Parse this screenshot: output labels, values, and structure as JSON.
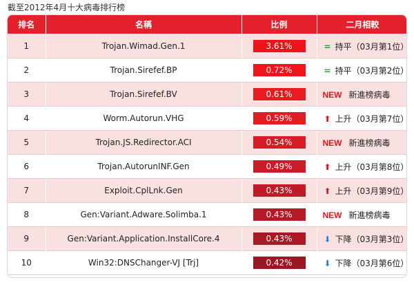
{
  "caption": "截至2012年4月十大病毒排行榜",
  "headers": [
    "排名",
    "名稱",
    "比例",
    "二月相較"
  ],
  "rows": [
    {
      "rank": "1",
      "name": "Trojan.Wimad.Gen.1",
      "ratio": "3.61%",
      "ratio_color": "#f01219",
      "change_icon": "equal-icon",
      "change_new": "",
      "change_text": "持平（03月第1位）"
    },
    {
      "rank": "2",
      "name": "Trojan.Sirefef.BP",
      "ratio": "0.72%",
      "ratio_color": "#ee151d",
      "change_icon": "equal-icon",
      "change_new": "",
      "change_text": "持平（03月第2位）"
    },
    {
      "rank": "3",
      "name": "Trojan.Sirefef.BV",
      "ratio": "0.61%",
      "ratio_color": "#e81a22",
      "change_icon": "",
      "change_new": "NEW",
      "change_text": "新進榜病毒"
    },
    {
      "rank": "4",
      "name": "Worm.Autorun.VHG",
      "ratio": "0.59%",
      "ratio_color": "#e01c25",
      "change_icon": "arrow-up-icon",
      "change_new": "",
      "change_text": "上升（03月第7位）"
    },
    {
      "rank": "5",
      "name": "Trojan.JS.Redirector.ACI",
      "ratio": "0.54%",
      "ratio_color": "#d81c26",
      "change_icon": "",
      "change_new": "NEW",
      "change_text": "新進榜病毒"
    },
    {
      "rank": "6",
      "name": "Trojan.AutorunINF.Gen",
      "ratio": "0.49%",
      "ratio_color": "#cc1b27",
      "change_icon": "arrow-up-icon",
      "change_new": "",
      "change_text": "上升（03月第8位）"
    },
    {
      "rank": "7",
      "name": "Exploit.CplLnk.Gen",
      "ratio": "0.43%",
      "ratio_color": "#c01a27",
      "change_icon": "arrow-up-icon",
      "change_new": "",
      "change_text": "上升（03月第9位）"
    },
    {
      "rank": "8",
      "name": "Gen:Variant.Adware.Solimba.1",
      "ratio": "0.43%",
      "ratio_color": "#b41926",
      "change_icon": "",
      "change_new": "NEW",
      "change_text": "新進榜病毒"
    },
    {
      "rank": "9",
      "name": "Gen:Variant.Application.InstallCore.4",
      "ratio": "0.43%",
      "ratio_color": "#a81825",
      "change_icon": "arrow-down-icon",
      "change_new": "",
      "change_text": "下降（03月第3位）"
    },
    {
      "rank": "10",
      "name": "Win32:DNSChanger-VJ [Trj]",
      "ratio": "0.42%",
      "ratio_color": "#9c1724",
      "change_icon": "arrow-down-icon",
      "change_new": "",
      "change_text": "下降（03月第6位）"
    }
  ]
}
